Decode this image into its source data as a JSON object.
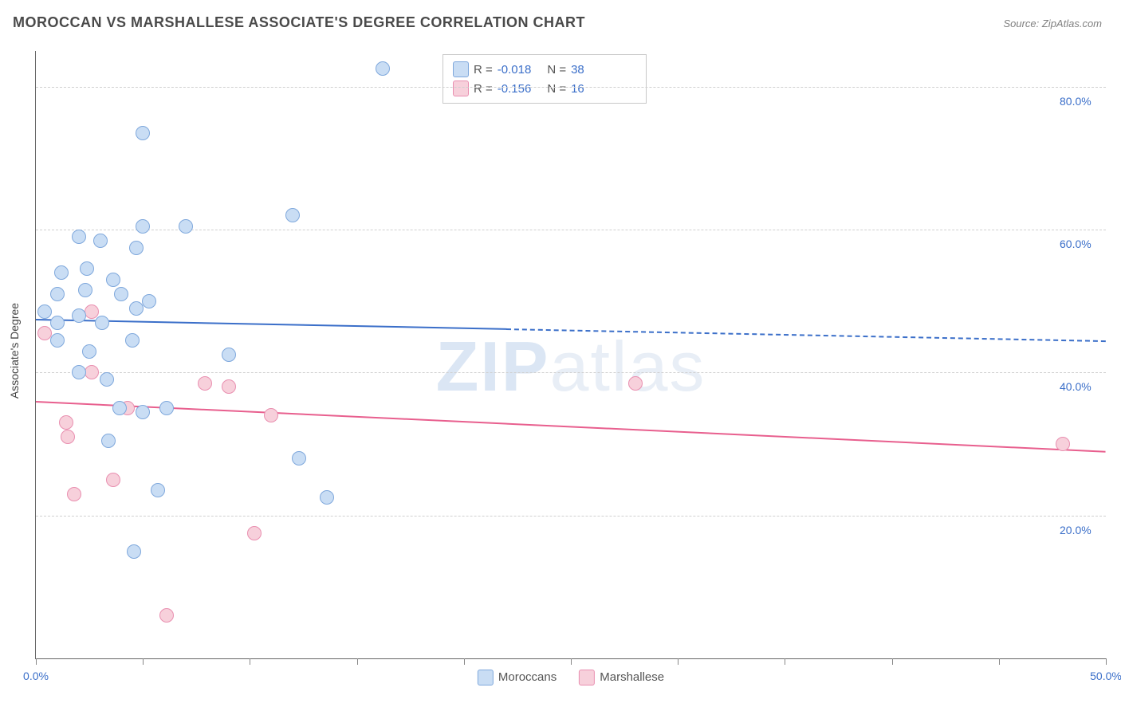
{
  "title": "MOROCCAN VS MARSHALLESE ASSOCIATE'S DEGREE CORRELATION CHART",
  "source": "Source: ZipAtlas.com",
  "watermark_bold": "ZIP",
  "watermark_rest": "atlas",
  "ylabel": "Associate's Degree",
  "chart": {
    "type": "scatter",
    "xlim": [
      0,
      50
    ],
    "ylim": [
      0,
      85
    ],
    "x_ticks": [
      0,
      5,
      10,
      15,
      20,
      25,
      30,
      35,
      40,
      45,
      50
    ],
    "x_tick_labels": {
      "0": "0.0%",
      "50": "50.0%"
    },
    "y_gridlines": [
      20,
      40,
      60,
      80
    ],
    "y_tick_labels": {
      "20": "20.0%",
      "40": "40.0%",
      "60": "60.0%",
      "80": "80.0%"
    },
    "background_color": "#ffffff",
    "grid_color": "#d0d0d0",
    "axis_color": "#666666",
    "tick_label_color": "#3b6fc9",
    "ylabel_color": "#444444",
    "marker_radius": 9
  },
  "series": {
    "moroccans": {
      "label": "Moroccans",
      "fill": "#c9ddf4",
      "stroke": "#7fa8dc",
      "line_color": "#3b6fc9",
      "r": "-0.018",
      "n": "38",
      "trend": {
        "x1": 0,
        "y1": 47.5,
        "x2": 50,
        "y2": 44.5,
        "solid_until_x": 22
      },
      "points": [
        [
          16.2,
          82.5
        ],
        [
          5.0,
          73.5
        ],
        [
          12.0,
          62.0
        ],
        [
          2.0,
          59.0
        ],
        [
          3.0,
          58.5
        ],
        [
          5.0,
          60.5
        ],
        [
          7.0,
          60.5
        ],
        [
          4.7,
          57.5
        ],
        [
          1.2,
          54.0
        ],
        [
          2.4,
          54.5
        ],
        [
          3.6,
          53.0
        ],
        [
          1.0,
          51.0
        ],
        [
          2.3,
          51.5
        ],
        [
          4.0,
          51.0
        ],
        [
          5.3,
          50.0
        ],
        [
          0.4,
          48.5
        ],
        [
          1.0,
          47.0
        ],
        [
          2.0,
          48.0
        ],
        [
          3.1,
          47.0
        ],
        [
          4.7,
          49.0
        ],
        [
          1.0,
          44.5
        ],
        [
          2.5,
          43.0
        ],
        [
          4.5,
          44.5
        ],
        [
          9.0,
          42.5
        ],
        [
          2.0,
          40.0
        ],
        [
          3.3,
          39.0
        ],
        [
          3.9,
          35.0
        ],
        [
          5.0,
          34.5
        ],
        [
          6.1,
          35.0
        ],
        [
          3.4,
          30.5
        ],
        [
          12.3,
          28.0
        ],
        [
          5.7,
          23.5
        ],
        [
          13.6,
          22.5
        ],
        [
          4.6,
          15.0
        ]
      ]
    },
    "marshallese": {
      "label": "Marshallese",
      "fill": "#f7d0db",
      "stroke": "#e98fb0",
      "line_color": "#e85f8e",
      "r": "-0.156",
      "n": "16",
      "trend": {
        "x1": 0,
        "y1": 36.0,
        "x2": 50,
        "y2": 29.0,
        "solid_until_x": 50
      },
      "points": [
        [
          2.6,
          48.5
        ],
        [
          0.4,
          45.5
        ],
        [
          2.6,
          40.0
        ],
        [
          7.9,
          38.5
        ],
        [
          9.0,
          38.0
        ],
        [
          28.0,
          38.5
        ],
        [
          4.3,
          35.0
        ],
        [
          11.0,
          34.0
        ],
        [
          1.4,
          33.0
        ],
        [
          1.5,
          31.0
        ],
        [
          3.6,
          25.0
        ],
        [
          1.8,
          23.0
        ],
        [
          10.2,
          17.5
        ],
        [
          6.1,
          6.0
        ],
        [
          48.0,
          30.0
        ]
      ]
    }
  },
  "legend_top": {
    "r_prefix": "R =",
    "n_prefix": "N ="
  }
}
